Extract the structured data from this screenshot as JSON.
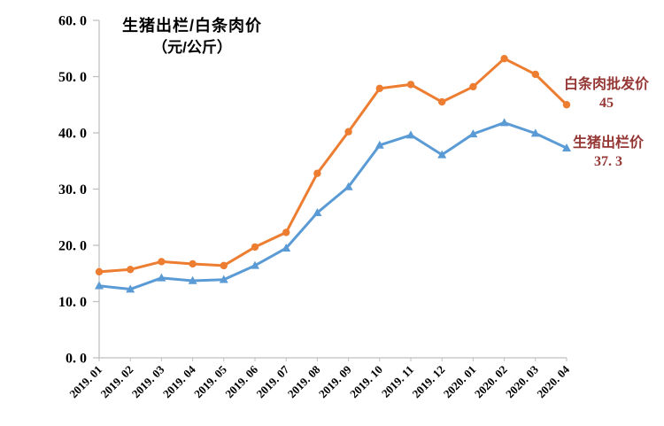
{
  "chart_data": {
    "type": "line",
    "title": "生猪出栏/白条肉价",
    "subtitle": "（元/公斤）",
    "categories": [
      "2019. 01",
      "2019. 02",
      "2019. 03",
      "2019. 04",
      "2019. 05",
      "2019. 06",
      "2019. 07",
      "2019. 08",
      "2019. 09",
      "2019. 10",
      "2019. 11",
      "2019. 12",
      "2020. 01",
      "2020. 02",
      "2020. 03",
      "2020. 04"
    ],
    "series": [
      {
        "name": "白条肉批发价",
        "color": "#ED7D31",
        "marker": "circle",
        "values": [
          15.3,
          15.7,
          17.1,
          16.7,
          16.4,
          19.7,
          22.3,
          32.8,
          40.2,
          47.9,
          48.6,
          45.5,
          48.2,
          53.2,
          50.4,
          45
        ],
        "end_label": "45"
      },
      {
        "name": "生猪出栏价",
        "color": "#5B9BD5",
        "marker": "triangle",
        "values": [
          12.8,
          12.2,
          14.2,
          13.7,
          13.9,
          16.4,
          19.5,
          25.8,
          30.4,
          37.8,
          39.6,
          36.1,
          39.8,
          41.8,
          39.9,
          37.3
        ],
        "end_label": "37. 3"
      }
    ],
    "ylim": [
      0,
      60
    ],
    "ytick_step": 10,
    "ytick_labels": [
      "0. 0",
      "10. 0",
      "20. 0",
      "30. 0",
      "40. 0",
      "50. 0",
      "60. 0"
    ],
    "grid": false,
    "legend_position": "right-annotations",
    "axis_color": "#BFBFBF",
    "text_color": "#000000",
    "annotation_color": "#953735"
  }
}
